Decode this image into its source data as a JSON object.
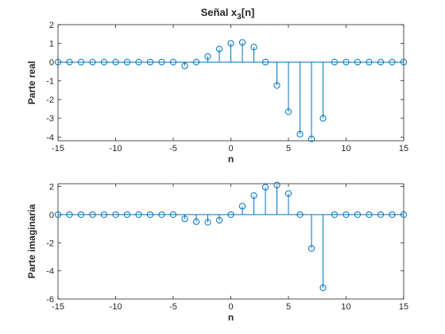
{
  "colors": {
    "series": "#0072BD",
    "axis": "#262626",
    "background": "#ffffff"
  },
  "chart_data": [
    {
      "type": "stem",
      "title_main": "Señal x",
      "title_sub": "3",
      "title_tail": "[n]",
      "xlabel": "n",
      "ylabel": "Parte real",
      "xlim": [
        -15,
        15
      ],
      "ylim": [
        -4.2,
        2
      ],
      "xticks": [
        -15,
        -10,
        -5,
        0,
        5,
        10,
        15
      ],
      "yticks": [
        -4,
        -3,
        -2,
        -1,
        0,
        1,
        2
      ],
      "x": [
        -15,
        -14,
        -13,
        -12,
        -11,
        -10,
        -9,
        -8,
        -7,
        -6,
        -5,
        -4,
        -3,
        -2,
        -1,
        0,
        1,
        2,
        3,
        4,
        5,
        6,
        7,
        8,
        9,
        10,
        11,
        12,
        13,
        14,
        15
      ],
      "y": [
        0,
        0,
        0,
        0,
        0,
        0,
        0,
        0,
        0,
        0,
        0,
        -0.2,
        0,
        0.3,
        0.7,
        1.0,
        1.05,
        0.8,
        0,
        -1.25,
        -2.65,
        -3.85,
        -4.1,
        -3.0,
        0,
        0,
        0,
        0,
        0,
        0,
        0
      ]
    },
    {
      "type": "stem",
      "xlabel": "n",
      "ylabel": "Parte imaginaria",
      "xlim": [
        -15,
        15
      ],
      "ylim": [
        -6,
        2.2
      ],
      "xticks": [
        -15,
        -10,
        -5,
        0,
        5,
        10,
        15
      ],
      "yticks": [
        -6,
        -4,
        -2,
        0,
        2
      ],
      "x": [
        -15,
        -14,
        -13,
        -12,
        -11,
        -10,
        -9,
        -8,
        -7,
        -6,
        -5,
        -4,
        -3,
        -2,
        -1,
        0,
        1,
        2,
        3,
        4,
        5,
        6,
        7,
        8,
        9,
        10,
        11,
        12,
        13,
        14,
        15
      ],
      "y": [
        0,
        0,
        0,
        0,
        0,
        0,
        0,
        0,
        0,
        0,
        0,
        -0.3,
        -0.5,
        -0.55,
        -0.4,
        0,
        0.6,
        1.35,
        1.95,
        2.1,
        1.5,
        0,
        -2.4,
        -5.2,
        0,
        0,
        0,
        0,
        0,
        0,
        0
      ]
    }
  ]
}
